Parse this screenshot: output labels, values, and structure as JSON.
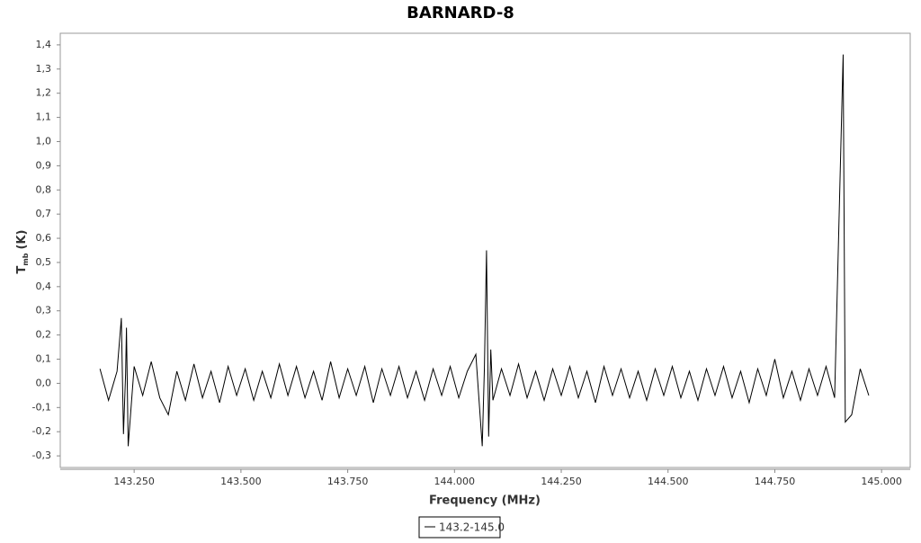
{
  "chart_data": {
    "type": "line",
    "title": "BARNARD-8",
    "x_label": "Frequency (MHz)",
    "y_label": "T",
    "y_label_sub": "mb",
    "y_label_unit": "(K)",
    "xlim": [
      143.077,
      145.067
    ],
    "ylim": [
      -0.348,
      1.448
    ],
    "xticks": [
      {
        "value": 143.25,
        "label": "143.250"
      },
      {
        "value": 143.5,
        "label": "143.500"
      },
      {
        "value": 143.75,
        "label": "143.750"
      },
      {
        "value": 144.0,
        "label": "144.000"
      },
      {
        "value": 144.25,
        "label": "144.250"
      },
      {
        "value": 144.5,
        "label": "144.500"
      },
      {
        "value": 144.75,
        "label": "144.750"
      },
      {
        "value": 145.0,
        "label": "145.000"
      }
    ],
    "yticks": [
      {
        "value": -0.3,
        "label": "-0,3"
      },
      {
        "value": -0.2,
        "label": "-0,2"
      },
      {
        "value": -0.1,
        "label": "-0,1"
      },
      {
        "value": 0.0,
        "label": "0,0"
      },
      {
        "value": 0.1,
        "label": "0,1"
      },
      {
        "value": 0.2,
        "label": "0,2"
      },
      {
        "value": 0.3,
        "label": "0,3"
      },
      {
        "value": 0.4,
        "label": "0,4"
      },
      {
        "value": 0.5,
        "label": "0,5"
      },
      {
        "value": 0.6,
        "label": "0,6"
      },
      {
        "value": 0.7,
        "label": "0,7"
      },
      {
        "value": 0.8,
        "label": "0,8"
      },
      {
        "value": 0.9,
        "label": "0,9"
      },
      {
        "value": 1.0,
        "label": "1,0"
      },
      {
        "value": 1.1,
        "label": "1,1"
      },
      {
        "value": 1.2,
        "label": "1,2"
      },
      {
        "value": 1.3,
        "label": "1,3"
      },
      {
        "value": 1.4,
        "label": "1,4"
      }
    ],
    "grid": false,
    "legend": "bottom",
    "x": [
      143.17,
      143.19,
      143.21,
      143.22,
      143.225,
      143.23,
      143.232,
      143.236,
      143.25,
      143.27,
      143.29,
      143.31,
      143.33,
      143.35,
      143.37,
      143.39,
      143.41,
      143.43,
      143.45,
      143.47,
      143.49,
      143.51,
      143.53,
      143.55,
      143.57,
      143.59,
      143.61,
      143.63,
      143.65,
      143.67,
      143.69,
      143.71,
      143.73,
      143.75,
      143.77,
      143.79,
      143.81,
      143.83,
      143.85,
      143.87,
      143.89,
      143.91,
      143.93,
      143.95,
      143.97,
      143.99,
      144.01,
      144.03,
      144.05,
      144.065,
      144.07,
      144.075,
      144.08,
      144.085,
      144.09,
      144.11,
      144.13,
      144.15,
      144.17,
      144.19,
      144.21,
      144.23,
      144.25,
      144.27,
      144.29,
      144.31,
      144.33,
      144.35,
      144.37,
      144.39,
      144.41,
      144.43,
      144.45,
      144.47,
      144.49,
      144.51,
      144.53,
      144.55,
      144.57,
      144.59,
      144.61,
      144.63,
      144.65,
      144.67,
      144.69,
      144.71,
      144.73,
      144.75,
      144.77,
      144.79,
      144.81,
      144.83,
      144.85,
      144.87,
      144.89,
      144.91,
      144.915,
      144.93,
      144.95,
      144.97
    ],
    "series": [
      {
        "name": "143.2-145.0",
        "color": "#000000",
        "values": [
          0.06,
          -0.07,
          0.05,
          0.27,
          -0.21,
          0.04,
          0.23,
          -0.26,
          0.07,
          -0.05,
          0.09,
          -0.06,
          -0.13,
          0.05,
          -0.07,
          0.08,
          -0.06,
          0.05,
          -0.08,
          0.07,
          -0.05,
          0.06,
          -0.07,
          0.05,
          -0.06,
          0.08,
          -0.05,
          0.07,
          -0.06,
          0.05,
          -0.07,
          0.09,
          -0.06,
          0.06,
          -0.05,
          0.07,
          -0.08,
          0.06,
          -0.05,
          0.07,
          -0.06,
          0.05,
          -0.07,
          0.06,
          -0.05,
          0.07,
          -0.06,
          0.05,
          0.12,
          -0.26,
          0.06,
          0.55,
          -0.22,
          0.14,
          -0.07,
          0.06,
          -0.05,
          0.08,
          -0.06,
          0.05,
          -0.07,
          0.06,
          -0.05,
          0.07,
          -0.06,
          0.05,
          -0.08,
          0.07,
          -0.05,
          0.06,
          -0.06,
          0.05,
          -0.07,
          0.06,
          -0.05,
          0.07,
          -0.06,
          0.05,
          -0.07,
          0.06,
          -0.05,
          0.07,
          -0.06,
          0.05,
          -0.08,
          0.06,
          -0.05,
          0.1,
          -0.06,
          0.05,
          -0.07,
          0.06,
          -0.05,
          0.07,
          -0.06,
          1.36,
          -0.16,
          -0.13,
          0.06,
          -0.05
        ]
      }
    ]
  }
}
